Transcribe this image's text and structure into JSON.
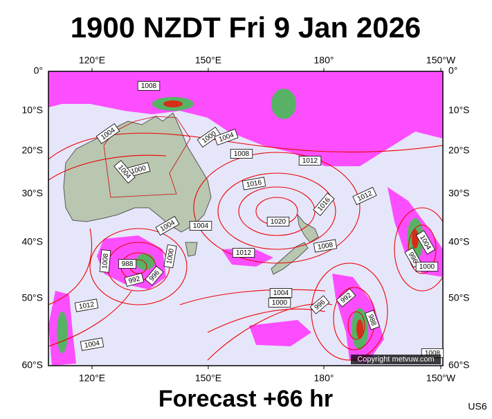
{
  "header": {
    "title": "1900 NZDT Fri 9 Jan 2026"
  },
  "map": {
    "top_labels": [
      "120°E",
      "150°E",
      "180°",
      "150°W"
    ],
    "bottom_labels": [
      "120°E",
      "150°E",
      "180°",
      "150°W"
    ],
    "left_labels": [
      "0°",
      "10°S",
      "20°S",
      "30°S",
      "40°S",
      "50°S",
      "60°S"
    ],
    "right_labels": [
      "0°",
      "10°S",
      "20°S",
      "30°S",
      "40°S",
      "50°S",
      "60°S"
    ],
    "isobar_labels": [
      "1008",
      "1004",
      "1000",
      "1004",
      "1008",
      "1012",
      "1016",
      "1016",
      "1012",
      "1020",
      "1000",
      "1004",
      "1004",
      "1004",
      "1012",
      "1008",
      "1004",
      "996",
      "1000",
      "1008",
      "988",
      "992",
      "996",
      "1000",
      "1004",
      "1000",
      "996",
      "992",
      "988",
      "1012",
      "1004",
      "1008"
    ],
    "copyright": "Copyright metvuw.com"
  },
  "footer": {
    "forecast": "Forecast +66 hr",
    "code": "US6"
  }
}
